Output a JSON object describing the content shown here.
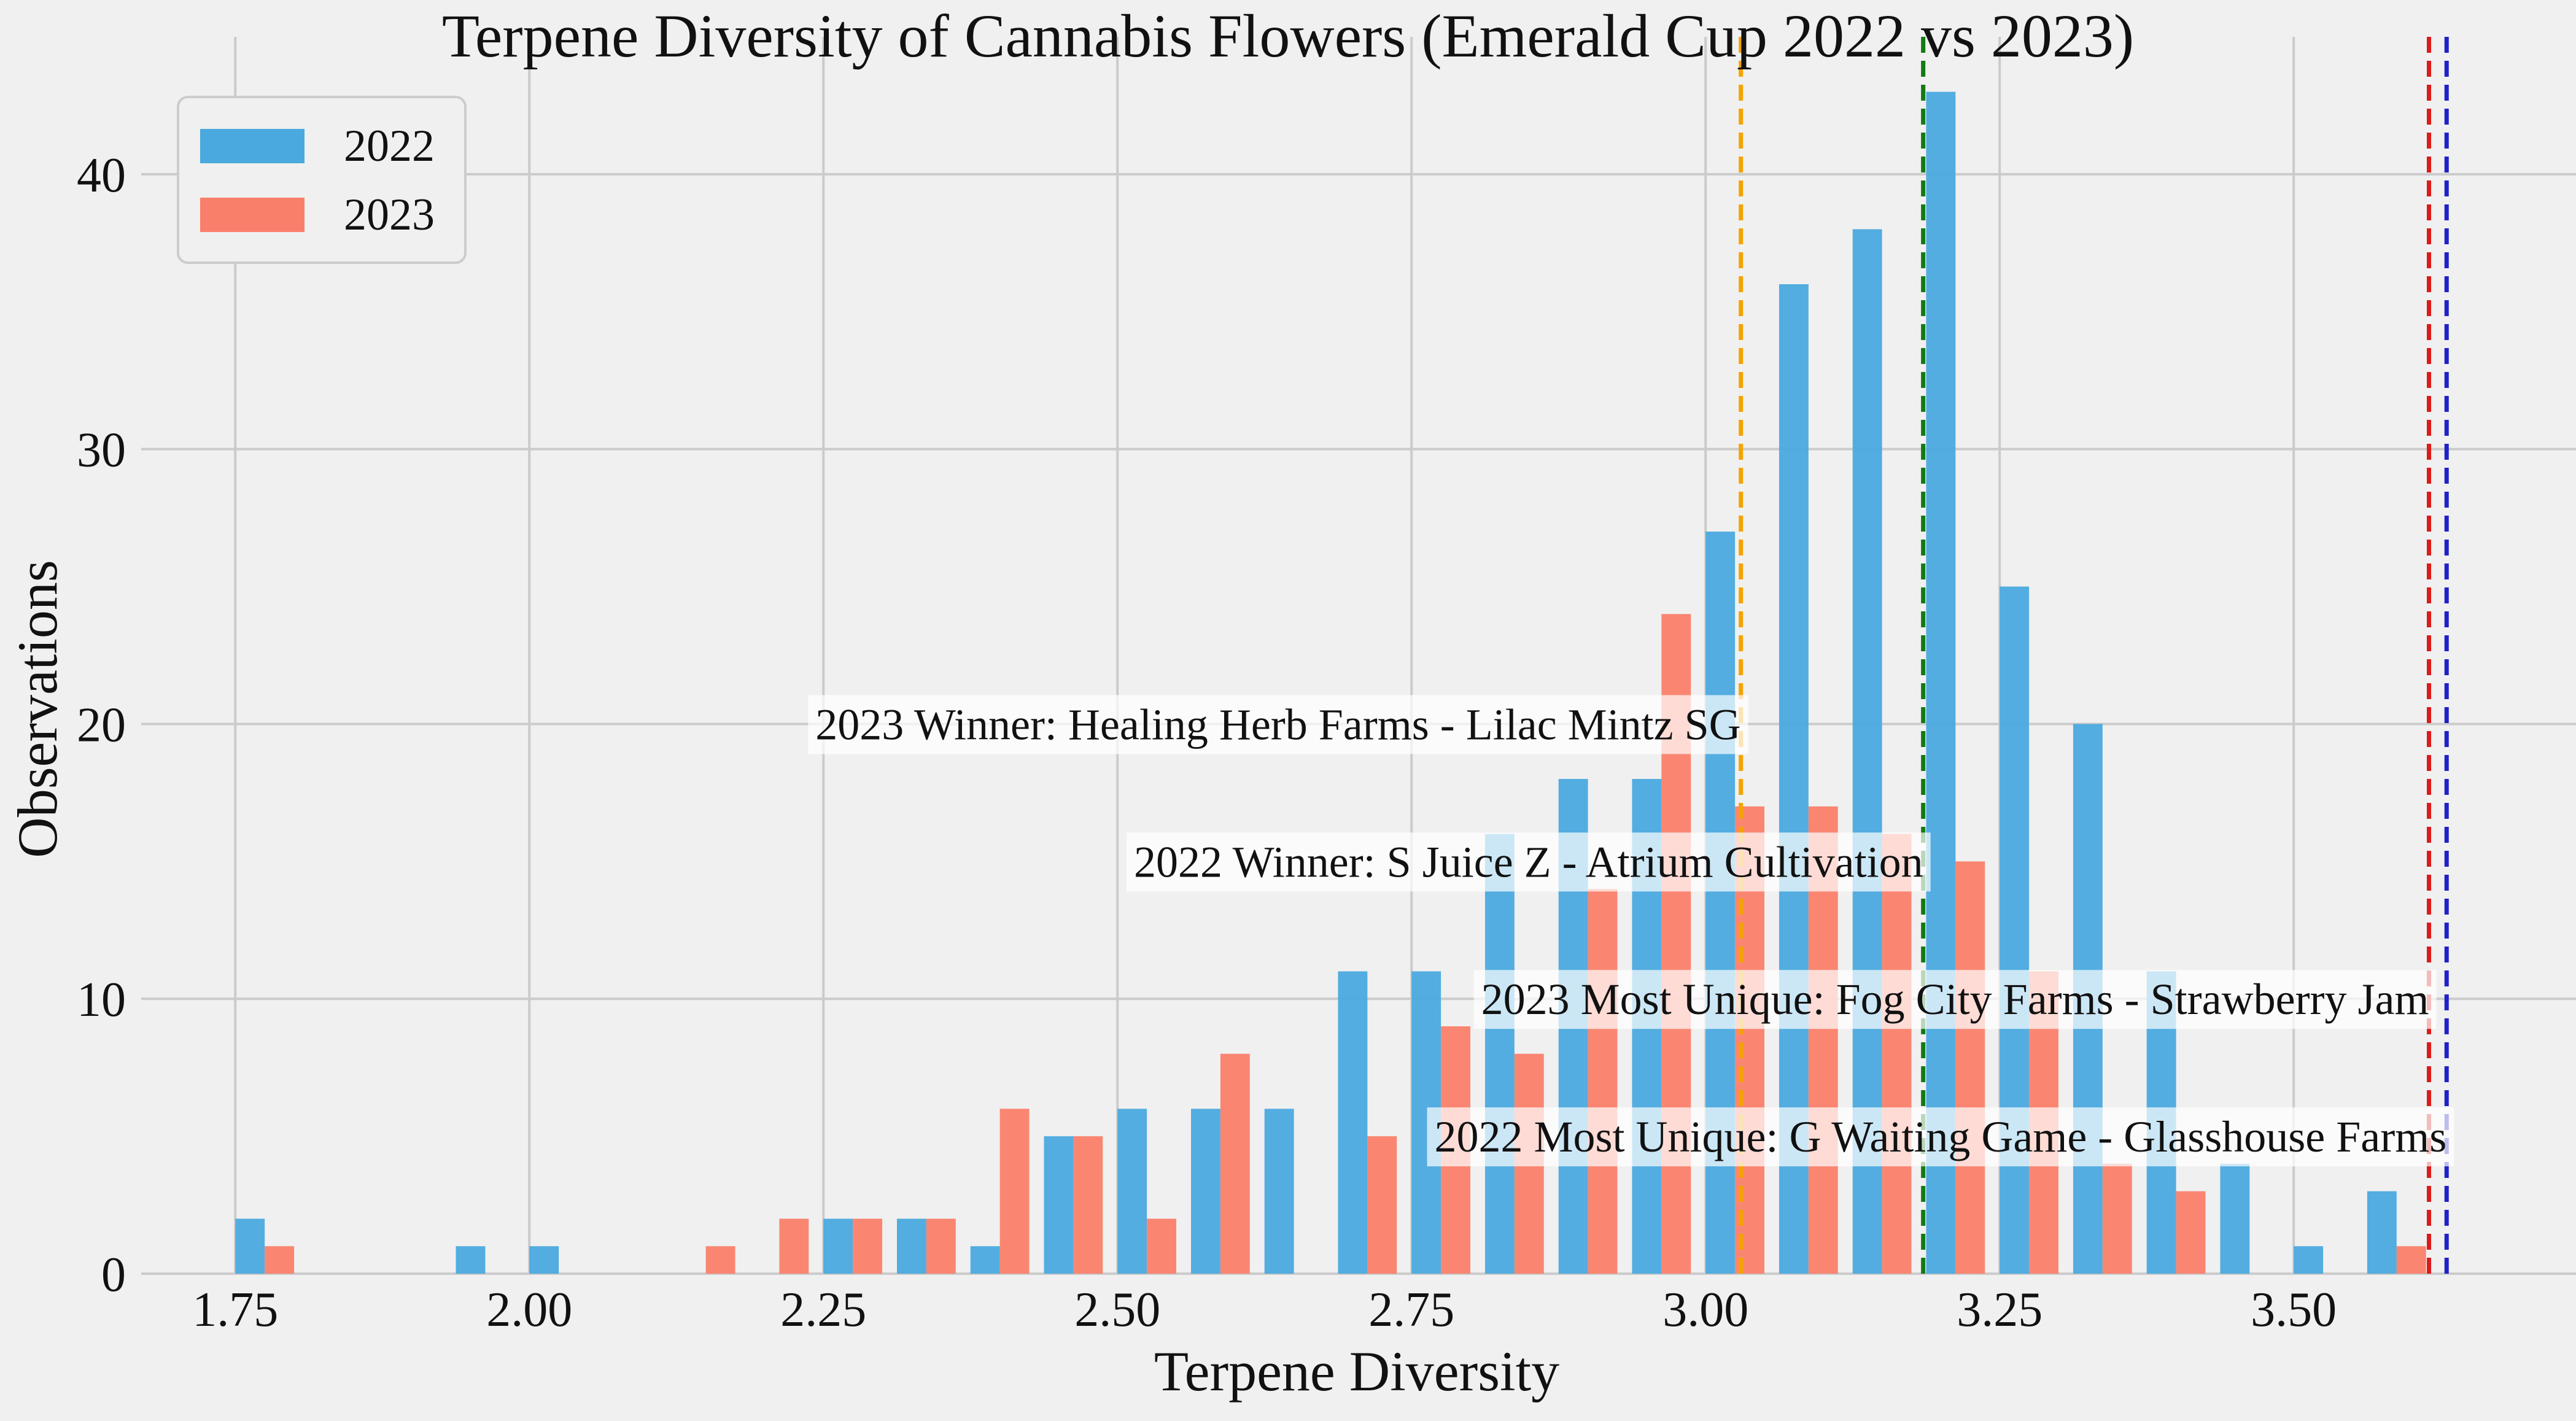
{
  "chart_data": {
    "type": "bar",
    "title": "Terpene Diversity of Cannabis Flowers (Emerald Cup 2022 vs 2023)",
    "xlabel": "Terpene Diversity",
    "ylabel": "Observations",
    "xlim": [
      1.67,
      3.74
    ],
    "ylim": [
      0,
      45
    ],
    "xticks": [
      "1.75",
      "2.00",
      "2.25",
      "2.50",
      "2.75",
      "3.00",
      "3.25",
      "3.50"
    ],
    "yticks": [
      "0",
      "10",
      "20",
      "30",
      "40"
    ],
    "grid": true,
    "legend_position": "top-left",
    "bin_start": 1.775,
    "bin_width": 0.0625,
    "series": [
      {
        "name": "2022",
        "color": "#4aa9de",
        "values": [
          2,
          0,
          0,
          1,
          1,
          0,
          0,
          0,
          2,
          2,
          1,
          5,
          6,
          6,
          6,
          11,
          11,
          16,
          18,
          18,
          27,
          36,
          38,
          43,
          25,
          20,
          11,
          4,
          1,
          3
        ]
      },
      {
        "name": "2023",
        "color": "#fa7f6a",
        "values": [
          1,
          0,
          0,
          0,
          0,
          0,
          1,
          2,
          2,
          2,
          6,
          5,
          2,
          8,
          0,
          5,
          9,
          8,
          14,
          24,
          17,
          17,
          16,
          15,
          11,
          4,
          3,
          0,
          0,
          1
        ]
      }
    ],
    "reference_lines": [
      {
        "x": 3.03,
        "color": "#f5a300"
      },
      {
        "x": 3.185,
        "color": "#147a14"
      },
      {
        "x": 3.615,
        "color": "#dd1a1a"
      },
      {
        "x": 3.63,
        "color": "#2020c8"
      }
    ],
    "annotations": [
      {
        "text": "2023 Winner: Healing Herb Farms - Lilac Mintz SG",
        "x": 3.03,
        "y": 20
      },
      {
        "text": "2022 Winner: S Juice Z - Atrium Cultivation",
        "x": 3.185,
        "y": 15
      },
      {
        "text": "2023 Most Unique: Fog City Farms - Strawberry Jam",
        "x": 3.615,
        "y": 10
      },
      {
        "text": "2022 Most Unique: G Waiting Game - Glasshouse Farms",
        "x": 3.63,
        "y": 5
      }
    ]
  }
}
